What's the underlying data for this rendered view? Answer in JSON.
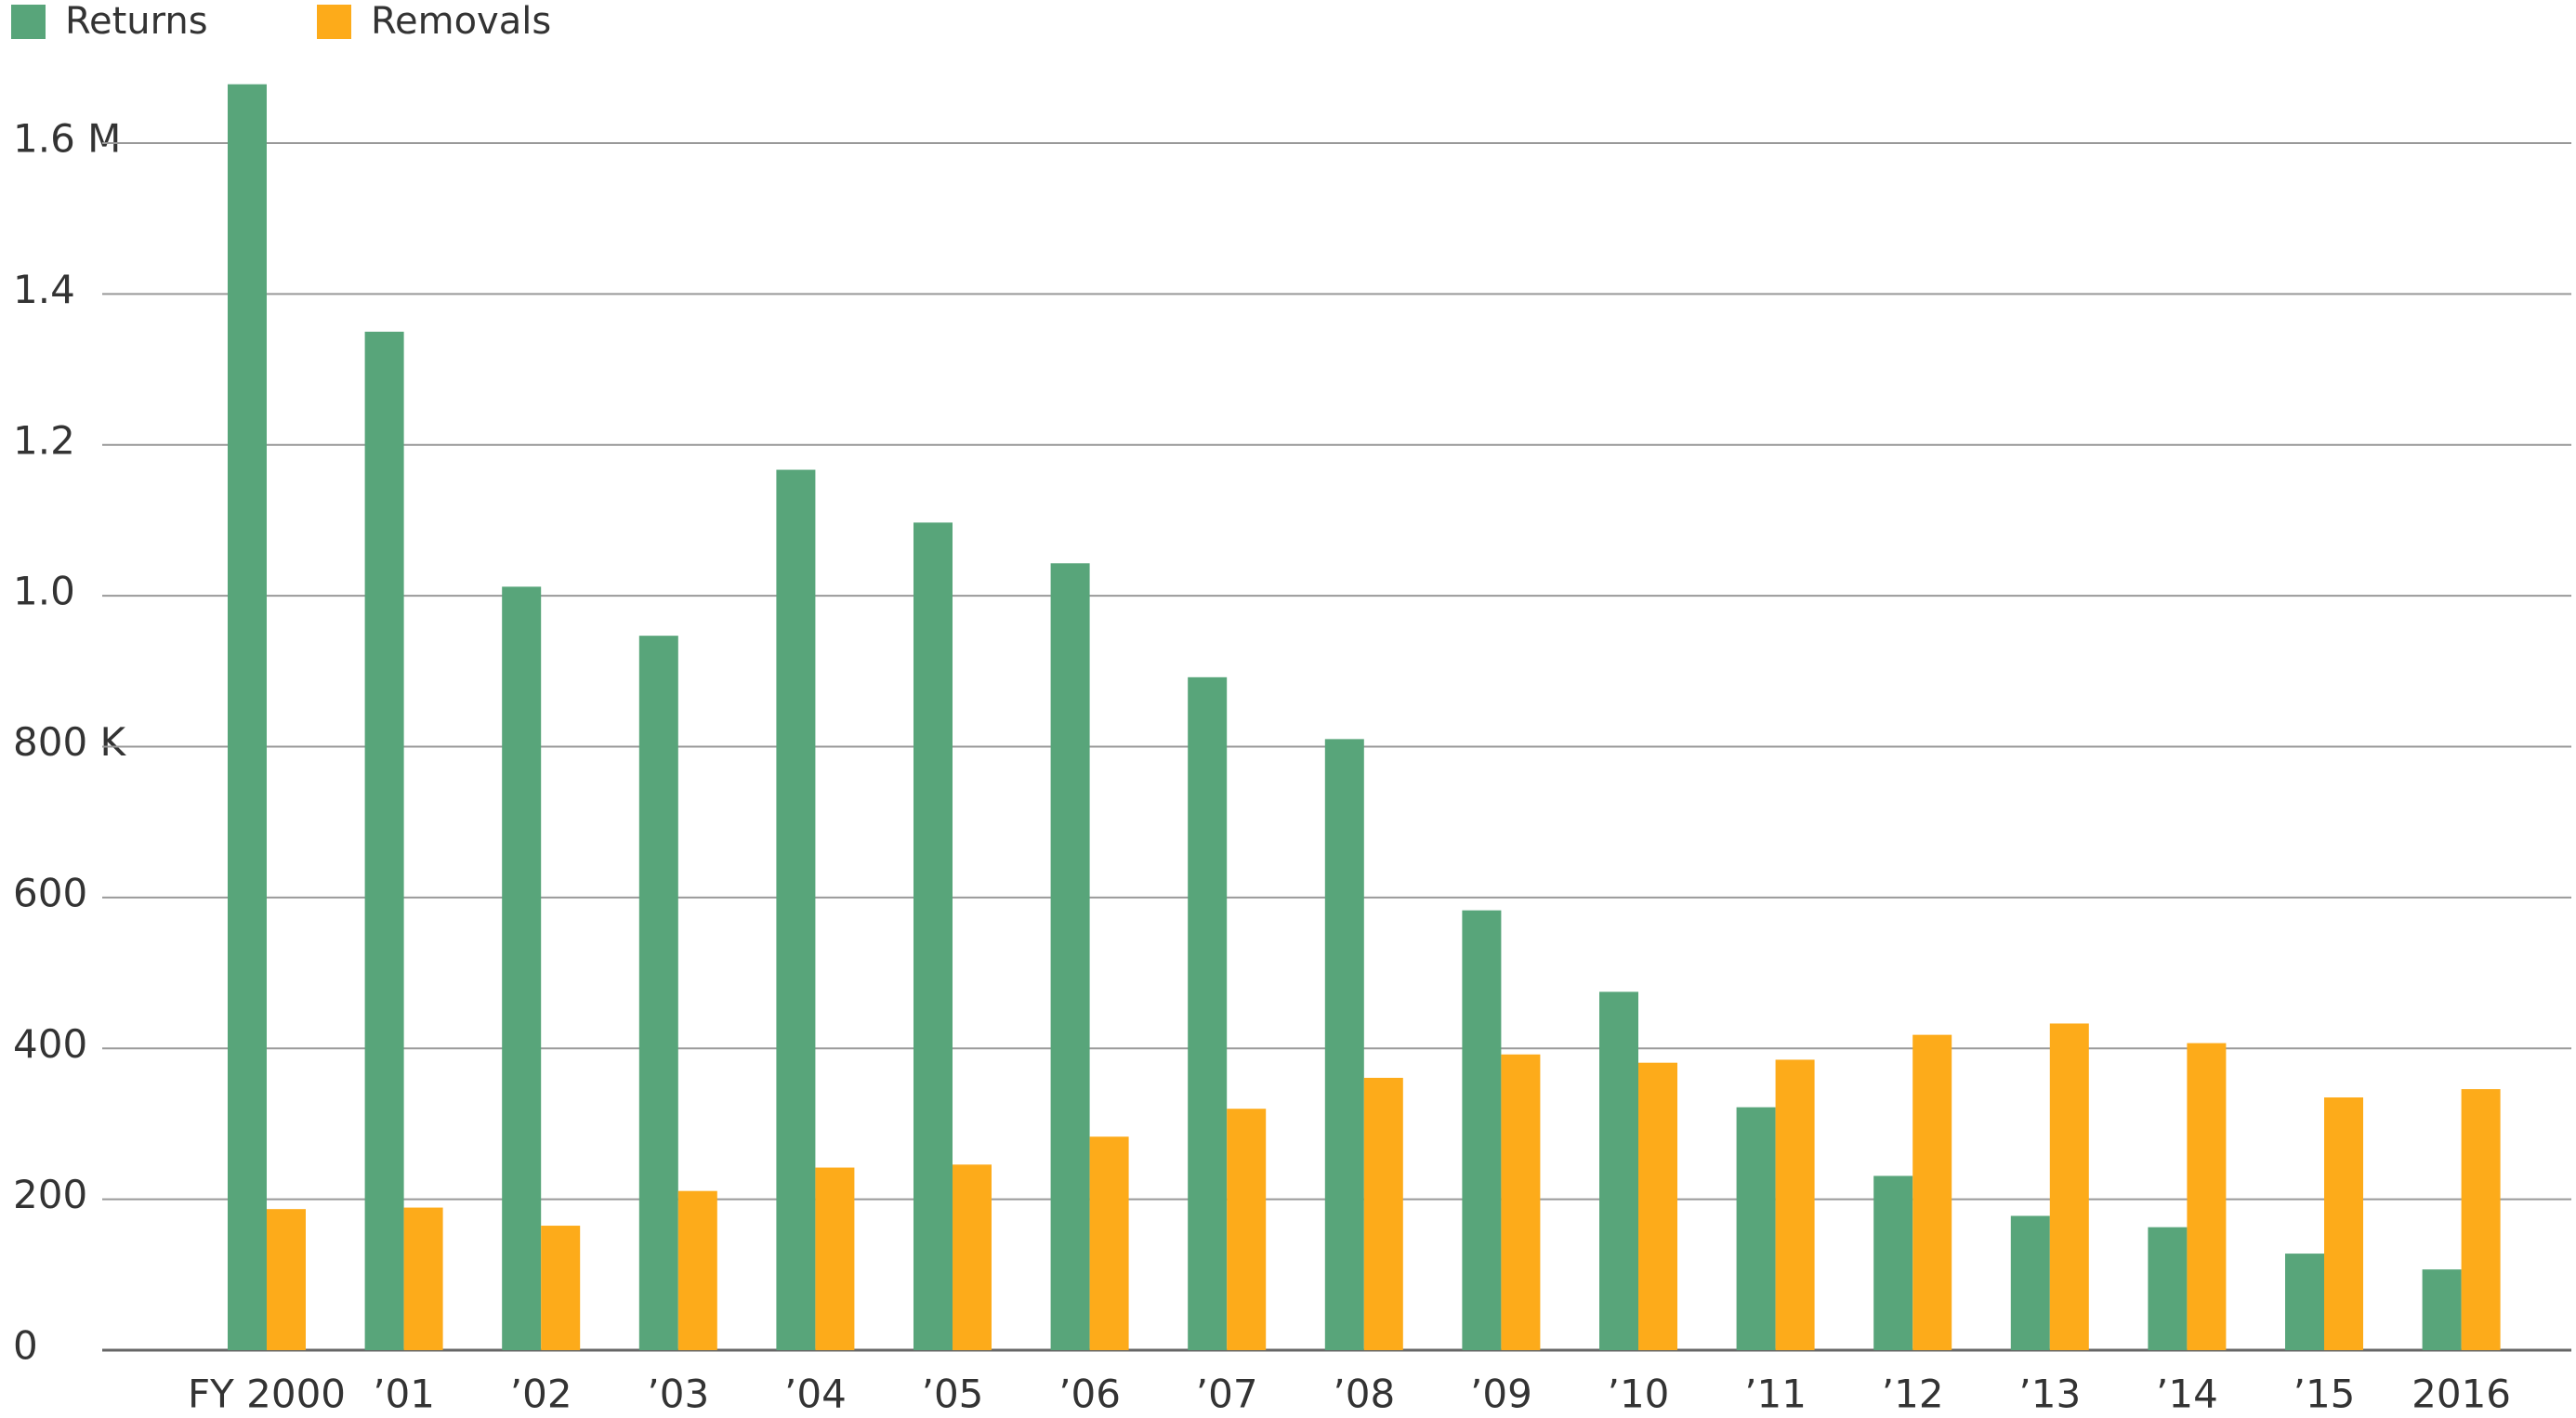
{
  "chart_data": {
    "type": "bar",
    "categories": [
      "FY 2000",
      "’01",
      "’02",
      "’03",
      "’04",
      "’05",
      "’06",
      "’07",
      "’08",
      "’09",
      "’10",
      "’11",
      "’12",
      "’13",
      "’14",
      "’15",
      "2016"
    ],
    "series": [
      {
        "name": "Returns",
        "color": "#58a57a",
        "values": [
          1678,
          1350,
          1012,
          947,
          1167,
          1097,
          1043,
          892,
          810,
          583,
          475,
          322,
          231,
          178,
          163,
          128,
          107
        ]
      },
      {
        "name": "Removals",
        "color": "#fdab1a",
        "values": [
          187,
          189,
          165,
          211,
          242,
          246,
          283,
          320,
          361,
          392,
          381,
          385,
          418,
          433,
          407,
          335,
          346
        ]
      }
    ],
    "ylim": [
      0,
      1750
    ],
    "yticks": [
      0,
      200,
      400,
      600,
      {
        "value": 800,
        "label": "800 K"
      },
      {
        "value": 1000,
        "label": "1.0"
      },
      {
        "value": 1200,
        "label": "1.2"
      },
      {
        "value": 1400,
        "label": "1.4"
      },
      {
        "value": 1600,
        "label": "1.6 M"
      }
    ],
    "grid": true
  }
}
